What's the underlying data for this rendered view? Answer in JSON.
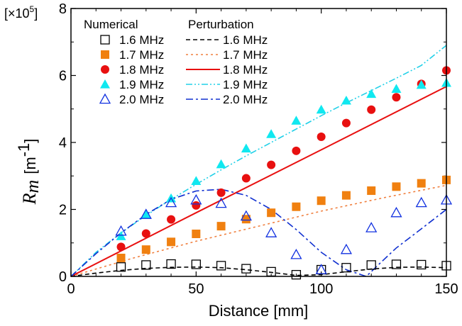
{
  "chart_data": {
    "type": "scatter",
    "xlabel": "Distance [mm]",
    "ylabel_symbol": "R",
    "ylabel_subscript": "m",
    "ylabel_unit_open": "[m",
    "ylabel_unit_exp": "-1",
    "ylabel_unit_close": "]",
    "multiplier_prefix": "[×10",
    "multiplier_exp": "5",
    "multiplier_suffix": "]",
    "xlim": [
      0,
      150
    ],
    "ylim": [
      0,
      8
    ],
    "x_ticks": [
      0,
      50,
      100,
      150
    ],
    "y_ticks": [
      0,
      2,
      4,
      6,
      8
    ],
    "grid": false,
    "legend_position": "top-left",
    "legend_headers": {
      "numerical": "Numerical",
      "perturbation": "Perturbation"
    },
    "scatter_series": [
      {
        "name": "1.6 MHz",
        "marker": "square-open",
        "color": "#000000",
        "x": [
          20,
          30,
          40,
          50,
          60,
          70,
          80,
          90,
          100,
          110,
          120,
          130,
          140,
          150
        ],
        "y": [
          0.28,
          0.34,
          0.37,
          0.36,
          0.32,
          0.23,
          0.14,
          0.05,
          0.2,
          0.26,
          0.34,
          0.36,
          0.35,
          0.32
        ]
      },
      {
        "name": "1.7 MHz",
        "marker": "square-filled",
        "color": "#f08010",
        "x": [
          20,
          30,
          40,
          50,
          60,
          70,
          80,
          90,
          100,
          110,
          120,
          130,
          140,
          150
        ],
        "y": [
          0.55,
          0.8,
          1.03,
          1.27,
          1.5,
          1.71,
          1.9,
          2.08,
          2.26,
          2.42,
          2.56,
          2.68,
          2.78,
          2.88
        ]
      },
      {
        "name": "1.8 MHz",
        "marker": "circle-filled",
        "color": "#e81010",
        "x": [
          20,
          30,
          40,
          50,
          60,
          70,
          80,
          90,
          100,
          110,
          120,
          130,
          140,
          150
        ],
        "y": [
          0.88,
          1.28,
          1.7,
          2.12,
          2.5,
          2.93,
          3.33,
          3.75,
          4.17,
          4.58,
          4.98,
          5.35,
          5.75,
          6.15
        ]
      },
      {
        "name": "1.9 MHz",
        "marker": "triangle-filled",
        "color": "#10e8f0",
        "x": [
          20,
          30,
          40,
          50,
          60,
          70,
          80,
          90,
          100,
          110,
          120,
          130,
          140,
          150
        ],
        "y": [
          1.2,
          1.85,
          2.33,
          2.85,
          3.35,
          3.82,
          4.25,
          4.65,
          4.98,
          5.25,
          5.45,
          5.6,
          5.72,
          5.78
        ]
      },
      {
        "name": "2.0 MHz",
        "marker": "triangle-open",
        "color": "#1030e0",
        "x": [
          20,
          30,
          40,
          50,
          60,
          70,
          80,
          90,
          100,
          110,
          120,
          130,
          140,
          150
        ],
        "y": [
          1.35,
          1.85,
          2.2,
          2.28,
          2.18,
          1.8,
          1.3,
          0.65,
          0.2,
          0.8,
          1.45,
          1.9,
          2.2,
          2.28
        ]
      }
    ],
    "line_series": [
      {
        "name": "1.6 MHz",
        "style": "dashed",
        "color": "#000000",
        "x": [
          0,
          10,
          20,
          30,
          40,
          50,
          60,
          70,
          80,
          90,
          100,
          110,
          120,
          130,
          140,
          150
        ],
        "y": [
          0,
          0.1,
          0.18,
          0.24,
          0.27,
          0.28,
          0.26,
          0.2,
          0.12,
          0.03,
          0.05,
          0.14,
          0.22,
          0.27,
          0.28,
          0.26
        ]
      },
      {
        "name": "1.7 MHz",
        "style": "dotted",
        "color": "#f08040",
        "x": [
          0,
          25,
          50,
          75,
          100,
          125,
          150
        ],
        "y": [
          0,
          0.55,
          1.05,
          1.5,
          1.95,
          2.35,
          2.72
        ]
      },
      {
        "name": "1.8 MHz",
        "style": "solid",
        "color": "#e81010",
        "x": [
          0,
          50,
          100,
          150
        ],
        "y": [
          0,
          1.9,
          3.78,
          5.67
        ]
      },
      {
        "name": "1.9 MHz",
        "style": "dash-dot-dot",
        "color": "#20d0e8",
        "x": [
          0,
          10,
          20,
          30,
          40,
          50,
          60,
          70,
          80,
          90,
          100,
          110,
          120,
          130,
          140,
          150
        ],
        "y": [
          0,
          0.72,
          1.3,
          1.82,
          2.3,
          2.75,
          3.18,
          3.6,
          4.0,
          4.4,
          4.8,
          5.18,
          5.55,
          5.92,
          6.3,
          6.9
        ]
      },
      {
        "name": "2.0 MHz",
        "style": "dash-dot",
        "color": "#1030d0",
        "x": [
          0,
          10,
          20,
          30,
          40,
          50,
          60,
          70,
          80,
          90,
          100,
          110,
          118,
          125,
          130,
          140,
          150
        ],
        "y": [
          0,
          0.68,
          1.3,
          1.85,
          2.3,
          2.55,
          2.6,
          2.42,
          2.0,
          1.4,
          0.72,
          0.2,
          0.0,
          0.5,
          0.85,
          1.42,
          2.0
        ]
      }
    ]
  }
}
